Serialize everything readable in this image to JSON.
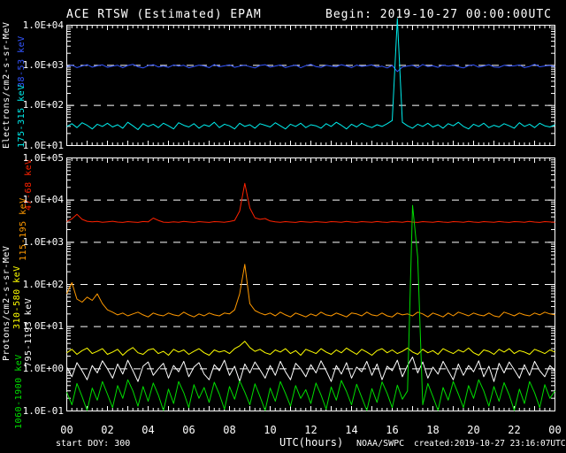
{
  "title": {
    "left": "ACE RTSW (Estimated) EPAM",
    "right": "Begin: 2019-10-27 00:00:00UTC"
  },
  "footer": {
    "start_doy": "start DOY:  300",
    "xlabel": "UTC(hours)",
    "agency": "NOAA/SWPC",
    "created": "created:2019-10-27 23:16:07UTC"
  },
  "colors": {
    "background": "#000000",
    "foreground": "#ffffff",
    "grid": "#ffffff"
  },
  "x_axis": {
    "label": "UTC(hours)",
    "tick_labels": [
      "00",
      "02",
      "04",
      "06",
      "08",
      "10",
      "12",
      "14",
      "16",
      "18",
      "20",
      "22",
      "00"
    ],
    "hours_span": 24
  },
  "chart_data": [
    {
      "type": "line",
      "title": "Electrons",
      "ylabel": "Electrons/cm2-s-sr-MeV",
      "xlabel": "UTC(hours)",
      "ylog": true,
      "ylim": [
        10,
        10000
      ],
      "ytick_labels": [
        "1.0E+04",
        "1.0E+03",
        "1.0E+02",
        "1.0E+01"
      ],
      "gridlines": [
        1000,
        100
      ],
      "x_start_hour": 0,
      "x_end_hour": 24,
      "x_sample_interval_hours": 0.25,
      "series": [
        {
          "name": "38-53 keV",
          "color": "#3355ff",
          "values": [
            930,
            1010,
            880,
            960,
            1040,
            900,
            970,
            1030,
            890,
            950,
            1000,
            870,
            990,
            1060,
            920,
            860,
            980,
            1040,
            910,
            960,
            890,
            1020,
            950,
            1000,
            870,
            940,
            1010,
            960,
            880,
            1050,
            920,
            970,
            1030,
            890,
            950,
            1000,
            930,
            860,
            990,
            1040,
            900,
            960,
            1020,
            880,
            950,
            1010,
            870,
            980,
            1060,
            930,
            890,
            1000,
            950,
            920,
            1040,
            960,
            880,
            1010,
            940,
            970,
            1030,
            900,
            950,
            860,
            990,
            700,
            910,
            960,
            1000,
            880,
            1050,
            930,
            970,
            890,
            1010,
            950,
            1000,
            920,
            860,
            980,
            1030,
            900,
            960,
            1040,
            910,
            890,
            1000,
            950,
            970,
            1020,
            880,
            940,
            1060,
            920,
            960,
            990,
            930
          ]
        },
        {
          "name": "175-315 keV",
          "color": "#00eeee",
          "values": [
            30,
            35,
            28,
            37,
            32,
            26,
            34,
            30,
            36,
            29,
            33,
            27,
            38,
            31,
            25,
            35,
            30,
            34,
            28,
            36,
            31,
            26,
            37,
            32,
            29,
            35,
            27,
            33,
            30,
            38,
            28,
            34,
            31,
            26,
            36,
            30,
            33,
            27,
            35,
            32,
            29,
            37,
            31,
            26,
            34,
            30,
            36,
            28,
            33,
            31,
            27,
            35,
            30,
            38,
            32,
            26,
            34,
            29,
            36,
            31,
            28,
            33,
            30,
            35,
            42,
            30000,
            38,
            31,
            27,
            34,
            30,
            36,
            29,
            33,
            27,
            35,
            31,
            38,
            30,
            26,
            34,
            30,
            36,
            28,
            32,
            29,
            35,
            31,
            27,
            37,
            30,
            34,
            28,
            36,
            31,
            29,
            33
          ]
        }
      ]
    },
    {
      "type": "line",
      "title": "Protons",
      "ylabel": "Protons/cm2-s-sr-MeV",
      "xlabel": "UTC(hours)",
      "ylog": true,
      "ylim": [
        0.1,
        100000
      ],
      "ytick_labels": [
        "1.0E+05",
        "1.0E+04",
        "1.0E+03",
        "1.0E+02",
        "1.0E+01",
        "1.0E+00",
        "1.0E-01"
      ],
      "gridlines": [
        10000,
        1000,
        100,
        10,
        1
      ],
      "x_start_hour": 0,
      "x_end_hour": 24,
      "x_sample_interval_hours": 0.25,
      "series": [
        {
          "name": "47-68 keV",
          "color": "#ff2200",
          "values": [
            3100,
            3600,
            4600,
            3500,
            3150,
            3050,
            3120,
            2980,
            3060,
            3150,
            3020,
            2960,
            3080,
            3010,
            2950,
            3100,
            3040,
            3750,
            3300,
            3000,
            2950,
            3060,
            2990,
            3120,
            3030,
            2960,
            3090,
            3010,
            2950,
            3080,
            3040,
            2980,
            3100,
            3300,
            5500,
            25000,
            6500,
            3800,
            3500,
            3650,
            3200,
            3050,
            2980,
            3090,
            3020,
            2960,
            3100,
            3030,
            2970,
            3080,
            3010,
            2950,
            3090,
            3040,
            2980,
            3110,
            3020,
            2960,
            3080,
            3030,
            2970,
            3100,
            3010,
            2950,
            3080,
            3040,
            2990,
            3110,
            3020,
            2960,
            3090,
            3030,
            2970,
            3100,
            3010,
            2950,
            3080,
            3040,
            2980,
            3110,
            3020,
            2960,
            3090,
            3030,
            2970,
            3100,
            3010,
            2950,
            3080,
            3040,
            2980,
            3110,
            3020,
            2960,
            3090,
            3030,
            2980
          ]
        },
        {
          "name": "115-195 keV",
          "color": "#ff9900",
          "values": [
            60,
            110,
            45,
            38,
            50,
            42,
            60,
            35,
            25,
            22,
            19,
            21,
            18,
            20,
            22,
            19,
            17,
            21,
            19,
            18,
            21,
            19,
            18,
            22,
            19,
            17,
            20,
            18,
            21,
            19,
            18,
            21,
            20,
            25,
            60,
            300,
            35,
            24,
            21,
            19,
            21,
            18,
            22,
            19,
            17,
            21,
            19,
            17,
            20,
            18,
            22,
            19,
            18,
            21,
            19,
            17,
            21,
            20,
            18,
            22,
            19,
            18,
            21,
            18,
            17,
            21,
            19,
            20,
            18,
            22,
            20,
            17,
            21,
            19,
            17,
            21,
            18,
            22,
            20,
            18,
            21,
            19,
            18,
            21,
            18,
            17,
            22,
            20,
            18,
            21,
            19,
            18,
            21,
            19,
            22,
            20,
            19
          ]
        },
        {
          "name": "310-580 keV",
          "color": "#ffff00",
          "values": [
            2.4,
            2.9,
            2.2,
            2.7,
            3.1,
            2.3,
            2.6,
            3.0,
            2.2,
            2.5,
            2.9,
            2.1,
            2.7,
            3.2,
            2.4,
            2.2,
            2.8,
            3.0,
            2.3,
            2.6,
            2.1,
            2.9,
            2.5,
            2.8,
            2.2,
            2.6,
            3.0,
            2.4,
            2.1,
            2.8,
            2.5,
            2.7,
            2.3,
            3.0,
            3.5,
            4.5,
            3.2,
            2.6,
            2.9,
            2.4,
            2.2,
            2.8,
            2.5,
            3.0,
            2.3,
            2.7,
            2.1,
            2.9,
            2.6,
            2.3,
            3.0,
            2.5,
            2.2,
            2.8,
            2.4,
            3.1,
            2.6,
            2.2,
            2.9,
            2.5,
            2.1,
            2.7,
            3.0,
            2.4,
            2.8,
            2.3,
            2.6,
            3.1,
            2.5,
            2.2,
            2.9,
            2.4,
            2.7,
            2.2,
            3.0,
            2.6,
            2.3,
            2.8,
            2.5,
            3.1,
            2.4,
            2.1,
            2.8,
            2.6,
            2.2,
            2.9,
            2.5,
            3.0,
            2.3,
            2.7,
            2.5,
            2.2,
            2.9,
            2.6,
            2.3,
            2.8,
            2.5
          ]
        },
        {
          "name": "795-1193 keV",
          "color": "#ffffff",
          "values": [
            1.1,
            0.65,
            1.4,
            0.9,
            0.55,
            1.2,
            0.8,
            1.55,
            1.0,
            0.6,
            1.3,
            0.75,
            1.6,
            0.9,
            0.5,
            1.15,
            1.45,
            0.7,
            1.0,
            1.35,
            0.6,
            1.2,
            0.85,
            1.5,
            0.65,
            1.1,
            1.4,
            0.75,
            0.55,
            1.25,
            0.9,
            1.6,
            0.7,
            1.15,
            0.5,
            1.3,
            0.8,
            1.45,
            0.95,
            0.6,
            1.2,
            0.7,
            1.5,
            0.85,
            0.55,
            1.35,
            1.0,
            0.65,
            1.25,
            0.8,
            1.55,
            0.9,
            0.5,
            1.2,
            0.75,
            1.4,
            0.6,
            1.1,
            0.85,
            1.5,
            0.7,
            1.3,
            0.55,
            1.15,
            0.9,
            1.6,
            0.65,
            1.2,
            1.9,
            0.8,
            1.45,
            0.6,
            1.1,
            0.75,
            1.5,
            0.9,
            0.55,
            1.3,
            0.7,
            1.2,
            0.85,
            1.55,
            0.65,
            1.15,
            0.5,
            1.35,
            0.8,
            1.45,
            0.95,
            0.6,
            1.25,
            0.7,
            1.5,
            0.9,
            0.65,
            1.2,
            0.9
          ]
        },
        {
          "name": "1060-1900 keV",
          "color": "#00dd00",
          "values": [
            0.28,
            0.14,
            0.45,
            0.22,
            0.1,
            0.35,
            0.18,
            0.5,
            0.25,
            0.12,
            0.4,
            0.2,
            0.55,
            0.3,
            0.13,
            0.38,
            0.17,
            0.46,
            0.24,
            0.1,
            0.33,
            0.15,
            0.5,
            0.27,
            0.12,
            0.42,
            0.2,
            0.36,
            0.16,
            0.48,
            0.25,
            0.11,
            0.38,
            0.19,
            0.52,
            0.28,
            0.14,
            0.44,
            0.22,
            0.1,
            0.35,
            0.17,
            0.5,
            0.26,
            0.13,
            0.4,
            0.2,
            0.32,
            0.15,
            0.46,
            0.24,
            0.11,
            0.37,
            0.18,
            0.53,
            0.29,
            0.14,
            0.43,
            0.21,
            0.1,
            0.34,
            0.16,
            0.49,
            0.26,
            0.12,
            0.41,
            0.19,
            0.3,
            7500,
            450,
            0.14,
            0.45,
            0.22,
            0.1,
            0.36,
            0.18,
            0.5,
            0.25,
            0.12,
            0.4,
            0.2,
            0.55,
            0.3,
            0.13,
            0.38,
            0.17,
            0.47,
            0.24,
            0.1,
            0.33,
            0.15,
            0.5,
            0.27,
            0.12,
            0.42,
            0.2,
            0.3
          ]
        }
      ]
    }
  ]
}
